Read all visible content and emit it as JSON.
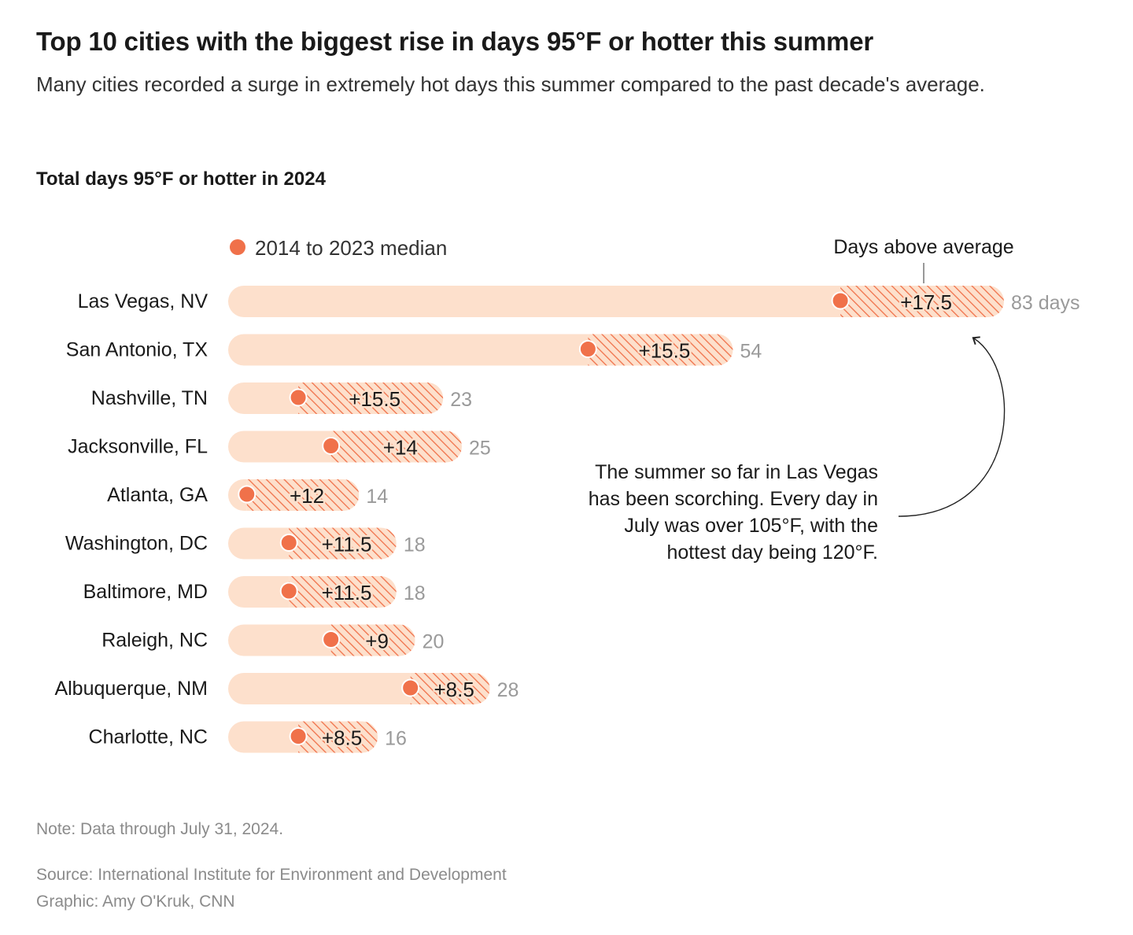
{
  "header": {
    "title": "Top 10 cities with the biggest rise in days 95°F or hotter this summer",
    "subtitle": "Many cities recorded a surge in extremely hot days this summer compared to the past decade's average.",
    "section_title": "Total days 95°F or hotter in 2024"
  },
  "legend": {
    "median_label": "2014 to 2023 median",
    "above_label": "Days above average"
  },
  "annotation": "The summer so far in Las Vegas has been scorching. Every day in July was over 105°F, with the hottest day being 120°F.",
  "footer": {
    "note": "Note: Data through July 31, 2024.",
    "source": "Source: International Institute for Environment and Development",
    "credit": "Graphic: Amy O'Kruk, CNN"
  },
  "colors": {
    "bar_fill": "#fde0cc",
    "median_dot": "#f0714a",
    "hatch": "#f0714a",
    "total_label": "#9a9a9a"
  },
  "chart_data": {
    "type": "bar",
    "orientation": "horizontal",
    "categories": [
      "Las Vegas, NV",
      "San Antonio, TX",
      "Nashville, TN",
      "Jacksonville, FL",
      "Atlanta, GA",
      "Washington, DC",
      "Baltimore, MD",
      "Raleigh, NC",
      "Albuquerque, NM",
      "Charlotte, NC"
    ],
    "series": [
      {
        "name": "2014 to 2023 median",
        "values": [
          65.5,
          38.5,
          7.5,
          11,
          2,
          6.5,
          6.5,
          11,
          19.5,
          7.5
        ]
      },
      {
        "name": "Days above average",
        "values": [
          17.5,
          15.5,
          15.5,
          14,
          12,
          11.5,
          11.5,
          9,
          8.5,
          8.5
        ]
      }
    ],
    "totals": [
      83,
      54,
      23,
      25,
      14,
      18,
      18,
      20,
      28,
      16
    ],
    "total_labels": [
      "83 days",
      "54",
      "23",
      "25",
      "14",
      "18",
      "18",
      "20",
      "28",
      "16"
    ],
    "diff_labels": [
      "+17.5",
      "+15.5",
      "+15.5",
      "+14",
      "+12",
      "+11.5",
      "+11.5",
      "+9",
      "+8.5",
      "+8.5"
    ],
    "xlim": [
      0,
      83
    ],
    "grid": false,
    "legend_position": "top"
  }
}
